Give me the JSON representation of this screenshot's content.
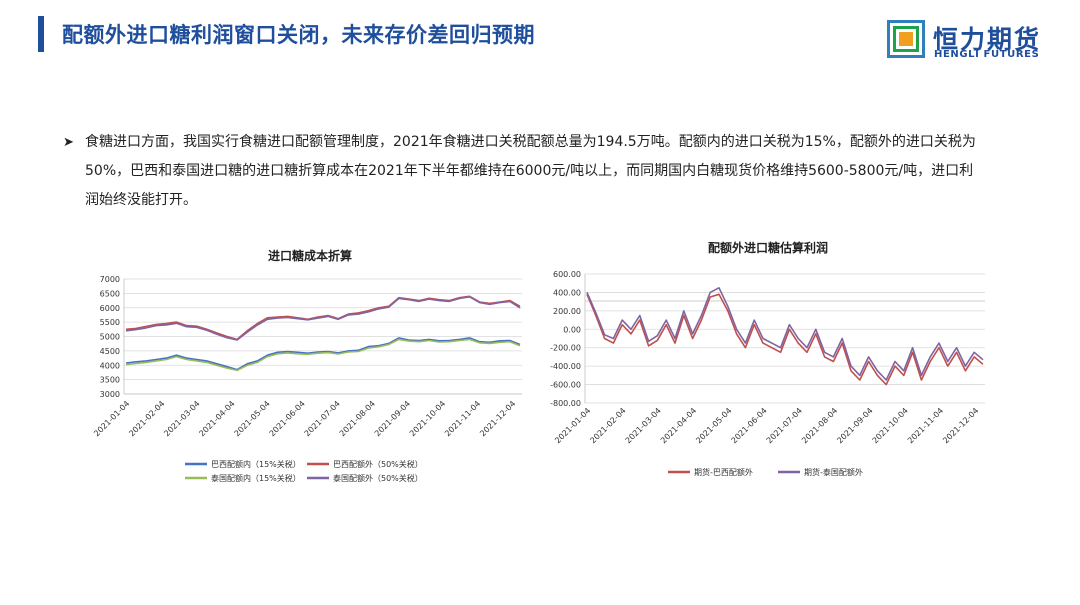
{
  "header": {
    "title": "配额外进口糖利润窗口关闭，未来存价差回归预期",
    "logo_name": "恒力期货",
    "logo_sub": "HENGLI FUTURES",
    "logo_icon": "hengli-logo-icon"
  },
  "body": {
    "bullet_icon": "arrow-bullet-icon",
    "text": "食糖进口方面，我国实行食糖进口配额管理制度，2021年食糖进口关税配额总量为194.5万吨。配额内的进口关税为15%，配额外的进口关税为50%，巴西和泰国进口糖的进口糖折算成本在2021年下半年都维持在6000元/吨以上，而同期国内白糖现货价格维持5600-5800元/吨，进口利润始终没能打开。"
  },
  "colors": {
    "accent": "#1f4e9c",
    "brazil_in": "#4472c4",
    "brazil_out": "#c0504d",
    "thai_in": "#9bbb59",
    "thai_out": "#8064a2"
  },
  "chart_data": [
    {
      "type": "line",
      "title": "进口糖成本折算",
      "ylim": [
        3000,
        7000
      ],
      "yticks": [
        "3000",
        "3500",
        "4000",
        "4500",
        "5000",
        "5500",
        "6000",
        "6500",
        "7000"
      ],
      "x_ticks": [
        "2021-01-04",
        "2021-02-04",
        "2021-03-04",
        "2021-04-04",
        "2021-05-04",
        "2021-06-04",
        "2021-07-04",
        "2021-08-04",
        "2021-09-04",
        "2021-10-04",
        "2021-11-04",
        "2021-12-04"
      ],
      "grid": true,
      "legend_position": "bottom",
      "series": [
        {
          "name": "巴西配额内（15%关税）",
          "color": "#4472c4",
          "values": [
            4080,
            4120,
            4150,
            4200,
            4250,
            4350,
            4250,
            4200,
            4150,
            4050,
            3950,
            3850,
            4050,
            4150,
            4350,
            4450,
            4480,
            4450,
            4420,
            4460,
            4480,
            4430,
            4500,
            4520,
            4650,
            4680,
            4760,
            4950,
            4880,
            4860,
            4900,
            4850,
            4860,
            4900,
            4950,
            4820,
            4800,
            4850,
            4860,
            4720
          ]
        },
        {
          "name": "巴西配额外（50%关税）",
          "color": "#c0504d",
          "values": [
            5250,
            5280,
            5350,
            5420,
            5450,
            5500,
            5380,
            5360,
            5250,
            5120,
            5000,
            4900,
            5200,
            5450,
            5650,
            5680,
            5700,
            5650,
            5600,
            5680,
            5730,
            5620,
            5780,
            5820,
            5900,
            6000,
            6050,
            6350,
            6300,
            6250,
            6330,
            6280,
            6250,
            6350,
            6400,
            6200,
            6150,
            6200,
            6250,
            6050
          ]
        },
        {
          "name": "泰国配额内（15%关税）",
          "color": "#9bbb59",
          "values": [
            4020,
            4060,
            4100,
            4150,
            4200,
            4300,
            4200,
            4150,
            4100,
            4000,
            3900,
            3820,
            4000,
            4100,
            4300,
            4400,
            4430,
            4400,
            4380,
            4420,
            4440,
            4390,
            4460,
            4480,
            4600,
            4640,
            4720,
            4900,
            4840,
            4820,
            4860,
            4810,
            4820,
            4860,
            4900,
            4780,
            4760,
            4800,
            4820,
            4680
          ]
        },
        {
          "name": "泰国配额外（50%关税）",
          "color": "#8064a2",
          "values": [
            5200,
            5240,
            5300,
            5380,
            5400,
            5460,
            5340,
            5320,
            5220,
            5080,
            4960,
            4880,
            5150,
            5400,
            5600,
            5640,
            5660,
            5620,
            5580,
            5640,
            5700,
            5600,
            5750,
            5780,
            5860,
            5960,
            6020,
            6320,
            6280,
            6220,
            6300,
            6250,
            6220,
            6320,
            6380,
            6180,
            6120,
            6180,
            6220,
            6000
          ]
        }
      ]
    },
    {
      "type": "line",
      "title": "配额外进口糖估算利润",
      "ylim": [
        -800,
        600
      ],
      "yticks": [
        "600.00",
        "400.00",
        "200.00",
        "0.00",
        "-200.00",
        "-400.00",
        "-600.00",
        "-800.00"
      ],
      "x_ticks": [
        "2021-01-04",
        "2021-02-04",
        "2021-03-04",
        "2021-04-04",
        "2021-05-04",
        "2021-06-04",
        "2021-07-04",
        "2021-08-04",
        "2021-09-04",
        "2021-10-04",
        "2021-11-04",
        "2021-12-04"
      ],
      "grid": true,
      "legend_position": "bottom",
      "series": [
        {
          "name": "期货-巴西配额外",
          "color": "#c0504d",
          "values": [
            380,
            150,
            -100,
            -150,
            50,
            -50,
            100,
            -180,
            -120,
            50,
            -150,
            150,
            -100,
            100,
            350,
            380,
            200,
            -50,
            -200,
            50,
            -150,
            -200,
            -250,
            0,
            -150,
            -250,
            -50,
            -300,
            -350,
            -150,
            -450,
            -550,
            -350,
            -500,
            -600,
            -400,
            -500,
            -250,
            -550,
            -350,
            -200,
            -400,
            -250,
            -450,
            -300,
            -380
          ]
        },
        {
          "name": "期货-泰国配额外",
          "color": "#8064a2",
          "values": [
            400,
            180,
            -60,
            -100,
            100,
            0,
            150,
            -130,
            -70,
            100,
            -100,
            200,
            -50,
            150,
            400,
            450,
            250,
            0,
            -150,
            100,
            -100,
            -150,
            -200,
            50,
            -100,
            -200,
            0,
            -250,
            -300,
            -100,
            -400,
            -500,
            -300,
            -450,
            -550,
            -350,
            -450,
            -200,
            -500,
            -300,
            -150,
            -350,
            -200,
            -400,
            -250,
            -330
          ]
        }
      ]
    }
  ]
}
